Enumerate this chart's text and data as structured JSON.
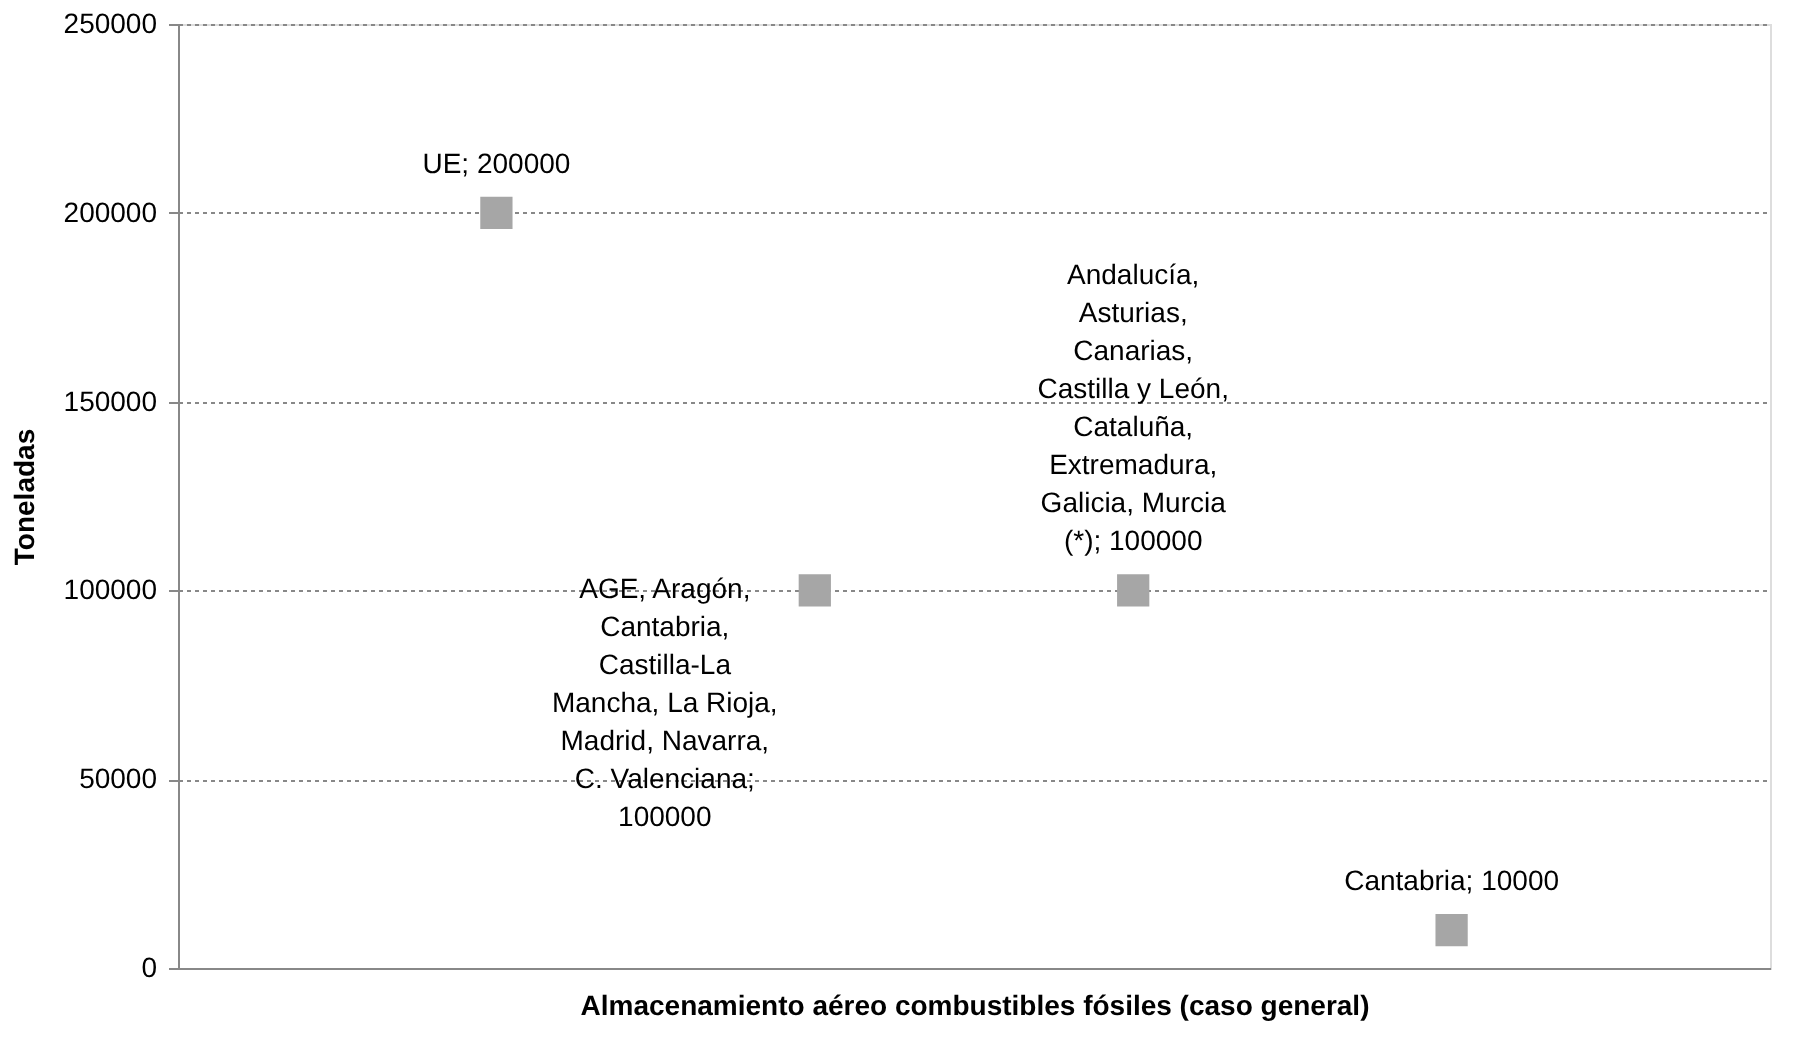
{
  "chart_data": {
    "type": "scatter",
    "xlabel": "Almacenamiento aéreo combustibles fósiles (caso general)",
    "ylabel": "Toneladas",
    "categories": [
      null,
      null,
      null,
      null
    ],
    "values": [
      200000,
      100000,
      100000,
      10000
    ],
    "value_labels": [
      "UE; 200000",
      "AGE, Aragón, Cantabria, Castilla-La Mancha, La Rioja, Madrid, Navarra, C. Valenciana; 100000",
      "Andalucía, Asturias, Canarias, Castilla y León, Cataluña, Extremadura, Galicia, Murcia (*); 100000",
      "Cantabria; 10000"
    ],
    "color": "#a6a6a6",
    "marker": "square",
    "ylim": [
      0,
      250000
    ],
    "yticks": [
      0,
      50000,
      100000,
      150000,
      200000,
      250000
    ],
    "grid": "y"
  }
}
